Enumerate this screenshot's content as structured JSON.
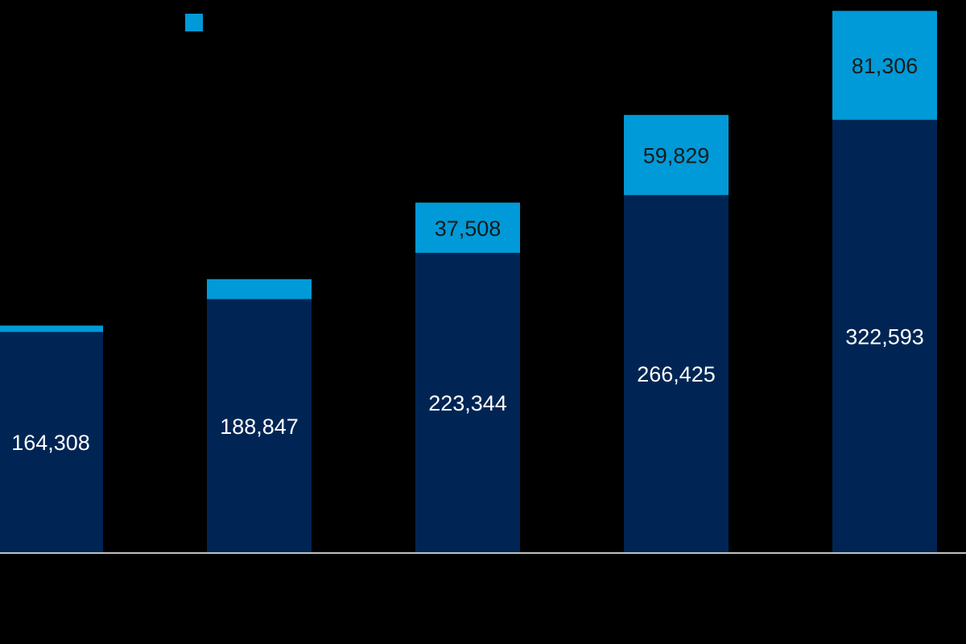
{
  "colors": {
    "background": "#000000",
    "base_series": "#002554",
    "top_series": "#009ad8",
    "axis": "#bfbfbf",
    "label_on_base": "#ffffff",
    "label_on_top": "#1a1a1a"
  },
  "legend": {
    "entries": [
      {
        "swatch_color": "#009ad8"
      }
    ]
  },
  "chart_data": {
    "type": "bar",
    "stacked": true,
    "categories": [
      "",
      "",
      "",
      "",
      ""
    ],
    "series": [
      {
        "color": "#002554",
        "values": [
          164308,
          188847,
          223344,
          266425,
          322593
        ],
        "labels": [
          "164,308",
          "188,847",
          "223,344",
          "266,425",
          "322,593"
        ]
      },
      {
        "color": "#009ad8",
        "values": [
          4800,
          14900,
          37508,
          59829,
          81306
        ],
        "labels": [
          null,
          null,
          "37,508",
          "59,829",
          "81,306"
        ]
      }
    ],
    "ylim": [
      0,
      412000
    ],
    "grid": false,
    "legend_position": "top-left",
    "title": "",
    "xlabel": "",
    "ylabel": ""
  }
}
